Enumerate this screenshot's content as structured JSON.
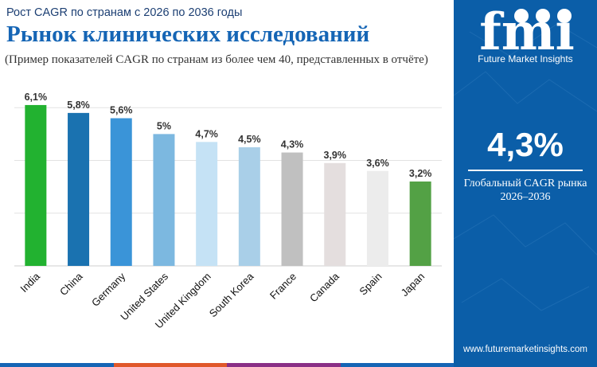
{
  "header": {
    "subtitle": "Рост CAGR по странам с 2026 по 2036 годы",
    "title": "Рынок клинических исследований",
    "note": "(Пример показателей CAGR по странам из более чем 40, представленных в отчёте)"
  },
  "chart_data": {
    "type": "bar",
    "categories": [
      "India",
      "China",
      "Germany",
      "United States",
      "United Kingdom",
      "South Korea",
      "France",
      "Canada",
      "Spain",
      "Japan"
    ],
    "values": [
      6.1,
      5.8,
      5.6,
      5.0,
      4.7,
      4.5,
      4.3,
      3.9,
      3.6,
      3.2
    ],
    "value_labels": [
      "6,1%",
      "5,8%",
      "5,6%",
      "5%",
      "4,7%",
      "4,5%",
      "4,3%",
      "3,9%",
      "3,6%",
      "3,2%"
    ],
    "bar_colors": [
      "#22b230",
      "#1a72b0",
      "#3a94d8",
      "#7cb8e0",
      "#c5e2f5",
      "#a9cfe8",
      "#c0c0c0",
      "#e4dede",
      "#ececec",
      "#53a145"
    ],
    "ylim": [
      0,
      6.4
    ],
    "grid": true,
    "legend": "none"
  },
  "sidebar": {
    "logo_text": "fmi",
    "brand": "Future Market Insights",
    "global_value": "4,3%",
    "global_label": "Глобальный CAGR рынка",
    "period": "2026–2036",
    "url": "www.futuremarketinsights.com"
  },
  "colors": {
    "sidebar_bg": "#0b5ea8",
    "title": "#1565b5",
    "strip": [
      "#1565b5",
      "#e0582a",
      "#8a2f86",
      "#1565b5"
    ]
  }
}
